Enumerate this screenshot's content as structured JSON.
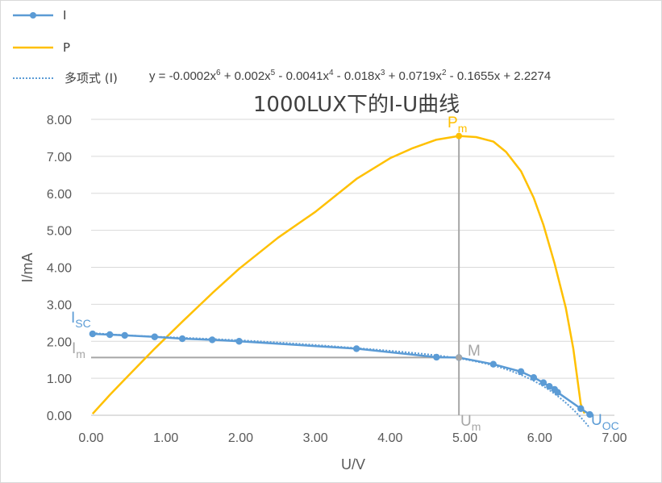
{
  "chart_data": {
    "type": "scatter",
    "title": "1000LUX下的I-U曲线",
    "xlabel": "U/V",
    "ylabel": "I/mA",
    "xlim": [
      0,
      7
    ],
    "ylim": [
      0,
      8
    ],
    "x_ticks": [
      "0.00",
      "1.00",
      "2.00",
      "3.00",
      "4.00",
      "5.00",
      "6.00",
      "7.00"
    ],
    "y_ticks": [
      "0.00",
      "1.00",
      "2.00",
      "3.00",
      "4.00",
      "5.00",
      "6.00",
      "7.00",
      "8.00"
    ],
    "grid": "horizontal",
    "legend_position": "top-left",
    "colors": {
      "I": "#5b9bd5",
      "P": "#ffc000",
      "ref": "#a6a6a6",
      "text": "#595959"
    },
    "series": [
      {
        "name": "I",
        "color": "#5b9bd5",
        "markers": true,
        "points": [
          [
            0.02,
            2.2
          ],
          [
            0.25,
            2.18
          ],
          [
            0.45,
            2.16
          ],
          [
            0.85,
            2.12
          ],
          [
            1.22,
            2.07
          ],
          [
            1.62,
            2.04
          ],
          [
            1.98,
            2.0
          ],
          [
            3.55,
            1.8
          ],
          [
            4.62,
            1.57
          ],
          [
            4.92,
            1.56
          ],
          [
            5.38,
            1.38
          ],
          [
            5.75,
            1.18
          ],
          [
            5.92,
            1.02
          ],
          [
            6.05,
            0.88
          ],
          [
            6.13,
            0.78
          ],
          [
            6.2,
            0.7
          ],
          [
            6.24,
            0.62
          ],
          [
            6.55,
            0.18
          ],
          [
            6.67,
            0.02
          ]
        ]
      },
      {
        "name": "P",
        "color": "#ffc000",
        "markers": false,
        "points": [
          [
            0.02,
            0.04
          ],
          [
            0.25,
            0.55
          ],
          [
            0.45,
            0.97
          ],
          [
            0.85,
            1.8
          ],
          [
            1.22,
            2.53
          ],
          [
            1.62,
            3.3
          ],
          [
            1.98,
            3.96
          ],
          [
            2.5,
            4.8
          ],
          [
            3.0,
            5.5
          ],
          [
            3.55,
            6.39
          ],
          [
            4.0,
            6.95
          ],
          [
            4.3,
            7.22
          ],
          [
            4.62,
            7.45
          ],
          [
            4.92,
            7.55
          ],
          [
            5.15,
            7.52
          ],
          [
            5.38,
            7.4
          ],
          [
            5.55,
            7.12
          ],
          [
            5.75,
            6.6
          ],
          [
            5.92,
            5.88
          ],
          [
            6.05,
            5.15
          ],
          [
            6.2,
            4.1
          ],
          [
            6.35,
            2.9
          ],
          [
            6.45,
            1.8
          ],
          [
            6.55,
            0.3
          ],
          [
            6.6,
            0.05
          ]
        ]
      },
      {
        "name": "多项式 (I)",
        "color": "#5b9bd5",
        "style": "dotted",
        "equation": "y = -0.0002x⁶ + 0.002x⁵ - 0.0041x⁴ - 0.018x³ + 0.0719x² - 0.1655x + 2.2274",
        "coefficients": [
          -0.0002,
          0.002,
          -0.0041,
          -0.018,
          0.0719,
          -0.1655,
          2.2274
        ],
        "x_range": [
          0.02,
          6.67
        ]
      }
    ],
    "max_power_point": {
      "U": 4.92,
      "I": 1.56,
      "P": 7.55
    },
    "annotations": {
      "isc": {
        "main": "I",
        "sub": "SC"
      },
      "im": {
        "main": "I",
        "sub": "m"
      },
      "m": {
        "main": "M"
      },
      "pm": {
        "main": "P",
        "sub": "m"
      },
      "um": {
        "main": "U",
        "sub": "m"
      },
      "uoc": {
        "main": "U",
        "sub": "OC"
      }
    }
  },
  "legend": {
    "items": [
      {
        "label": "I",
        "color": "#5b9bd5",
        "style": "solid-marker"
      },
      {
        "label": "P",
        "color": "#ffc000",
        "style": "solid"
      },
      {
        "label": "多项式 (I)",
        "color": "#5b9bd5",
        "style": "dotted"
      }
    ]
  },
  "equation": {
    "prefix": "y = -0.0002x",
    "p1": "6",
    "t2": " + 0.002x",
    "p2": "5",
    "t3": " - 0.0041x",
    "p3": "4",
    "t4": " - 0.018x",
    "p4": "3",
    "t5": " + 0.0719x",
    "p5": "2",
    "t6": " - 0.1655x + 2.2274"
  }
}
